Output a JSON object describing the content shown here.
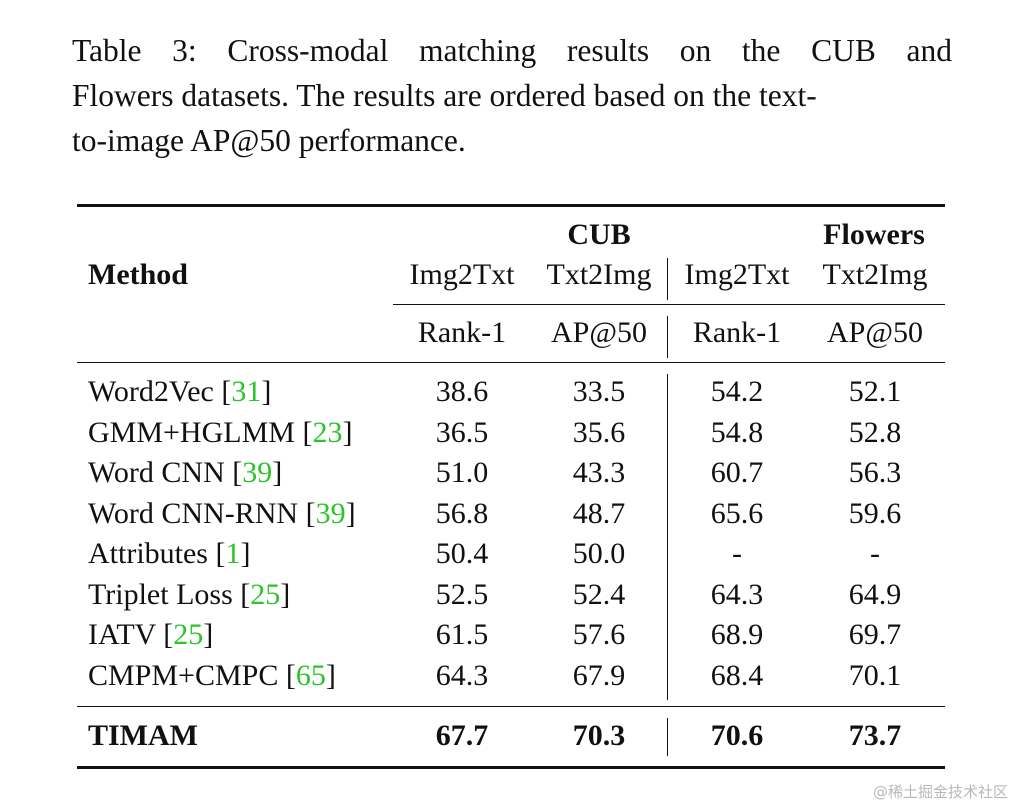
{
  "caption": {
    "line1": "Table 3:  Cross-modal matching results on the CUB and",
    "line2": "Flowers datasets. The results are ordered based on the text-",
    "line3": "to-image AP@50 performance."
  },
  "header": {
    "method": "Method",
    "groups": [
      "CUB",
      "Flowers"
    ],
    "directions": [
      "Img2Txt",
      "Txt2Img",
      "Img2Txt",
      "Txt2Img"
    ],
    "metrics": [
      "Rank-1",
      "AP@50",
      "Rank-1",
      "AP@50"
    ]
  },
  "rows": [
    {
      "name": "Word2Vec ",
      "cite": "31",
      "values": [
        "38.6",
        "33.5",
        "54.2",
        "52.1"
      ]
    },
    {
      "name": "GMM+HGLMM ",
      "cite": "23",
      "values": [
        "36.5",
        "35.6",
        "54.8",
        "52.8"
      ]
    },
    {
      "name": "Word CNN ",
      "cite": "39",
      "values": [
        "51.0",
        "43.3",
        "60.7",
        "56.3"
      ]
    },
    {
      "name": "Word CNN-RNN ",
      "cite": "39",
      "values": [
        "56.8",
        "48.7",
        "65.6",
        "59.6"
      ]
    },
    {
      "name": "Attributes ",
      "cite": "1",
      "values": [
        "50.4",
        "50.0",
        "-",
        "-"
      ]
    },
    {
      "name": "Triplet Loss ",
      "cite": "25",
      "values": [
        "52.5",
        "52.4",
        "64.3",
        "64.9"
      ]
    },
    {
      "name": "IATV ",
      "cite": "25",
      "values": [
        "61.5",
        "57.6",
        "68.9",
        "69.7"
      ]
    },
    {
      "name": "CMPM+CMPC ",
      "cite": "65",
      "values": [
        "64.3",
        "67.9",
        "68.4",
        "70.1"
      ]
    }
  ],
  "final_row": {
    "name": "TIMAM",
    "values": [
      "67.7",
      "70.3",
      "70.6",
      "73.7"
    ]
  },
  "watermark": "@稀土掘金技术社区",
  "colors": {
    "citation": "#2bc52b",
    "text": "#111111",
    "watermark": "#b9b9b9"
  }
}
